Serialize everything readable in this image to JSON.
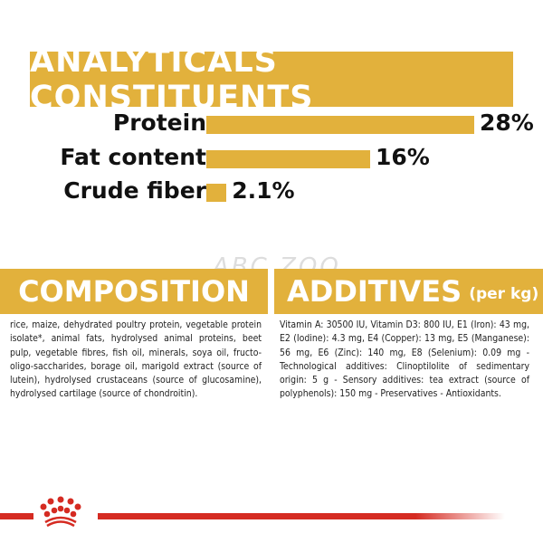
{
  "watermark": "ABC ZOO",
  "analytical": {
    "title": "ANALYTICALS CONSTITUENTS",
    "items": [
      {
        "label": "Protein",
        "value": "28%",
        "percent": 28
      },
      {
        "label": "Fat content",
        "value": "16%",
        "percent": 16
      },
      {
        "label": "Crude fiber",
        "value": "2.1%",
        "percent": 2.1
      }
    ]
  },
  "composition": {
    "title": "COMPOSITION",
    "text": "rice, maize, dehydrated poultry protein, vegetable protein isolate*, animal fats, hydrolysed animal proteins, beet pulp, vegetable fibres, fish oil, minerals, soya oil, fructo-oligo-saccharides, borage oil, marigold extract (source of lutein), hydrolysed crustaceans (source of glucosamine), hydrolysed cartilage (source of chondroitin)."
  },
  "additives": {
    "title": "ADDITIVES",
    "unit": "(per kg)",
    "text": "Vitamin A: 30500 IU, Vitamin D3: 800 IU, E1 (Iron): 43 mg, E2 (Iodine): 4.3 mg, E4 (Copper): 13 mg, E5 (Manganese): 56 mg, E6 (Zinc): 140 mg, E8 (Selenium): 0.09 mg - Technological additives: Clinoptilolite of sedimentary origin: 5 g - Sensory additives: tea extract (source of polyphenols): 150 mg - Preservatives - Antioxidants."
  },
  "colors": {
    "accent": "#e2b13c",
    "brand_red": "#d52b22"
  },
  "logo": {
    "icon": "royal-canin-crown-icon"
  }
}
